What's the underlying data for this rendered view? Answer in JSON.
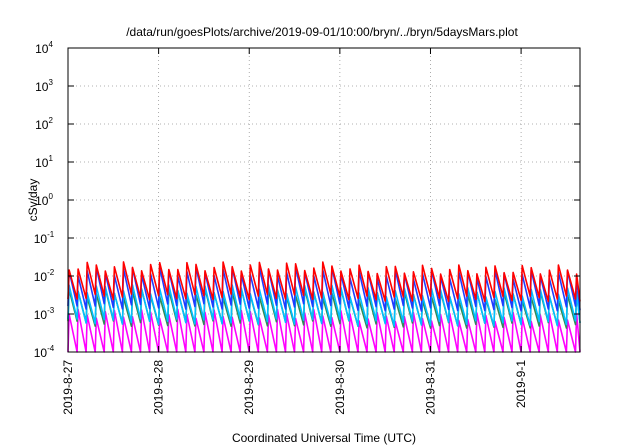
{
  "chart_data": {
    "type": "line",
    "title": "/data/run/goesPlots/archive/2019-09-01/10:00/bryn/../bryn/5daysMars.plot",
    "xlabel": "Coordinated Universal Time (UTC)",
    "ylabel": "cSv/day",
    "yscale": "log",
    "ylim": [
      0.0001,
      10000
    ],
    "xlim": [
      0,
      5.65
    ],
    "grid": true,
    "x_ticks": [
      {
        "value": 0,
        "label": "2019-8-27"
      },
      {
        "value": 1,
        "label": "2019-8-28"
      },
      {
        "value": 2,
        "label": "2019-8-29"
      },
      {
        "value": 3,
        "label": "2019-8-30"
      },
      {
        "value": 4,
        "label": "2019-8-31"
      },
      {
        "value": 5,
        "label": "2019-9-1"
      }
    ],
    "y_ticks": [
      {
        "value": 0.0001,
        "base": "10",
        "exp": "-4"
      },
      {
        "value": 0.001,
        "base": "10",
        "exp": "-3"
      },
      {
        "value": 0.01,
        "base": "10",
        "exp": "-2"
      },
      {
        "value": 0.1,
        "base": "10",
        "exp": "-1"
      },
      {
        "value": 1,
        "base": "10",
        "exp": "0"
      },
      {
        "value": 10,
        "base": "10",
        "exp": "1"
      },
      {
        "value": 100,
        "base": "10",
        "exp": "2"
      },
      {
        "value": 1000,
        "base": "10",
        "exp": "3"
      },
      {
        "value": 10000,
        "base": "10",
        "exp": "4"
      }
    ],
    "series": [
      {
        "color": "#ff00ff",
        "peak_log": -3.0,
        "trough_log": -4.1,
        "period": 0.1
      },
      {
        "color": "#2e8b57",
        "peak_log": -2.45,
        "trough_log": -3.25,
        "period": 0.1
      },
      {
        "color": "#00bfff",
        "peak_log": -2.35,
        "trough_log": -3.2,
        "period": 0.1
      },
      {
        "color": "#1e3cff",
        "peak_log": -1.88,
        "trough_log": -2.8,
        "period": 0.1
      },
      {
        "color": "#ff0000",
        "peak_log": -1.75,
        "trough_log": -2.55,
        "period": 0.1
      }
    ]
  }
}
